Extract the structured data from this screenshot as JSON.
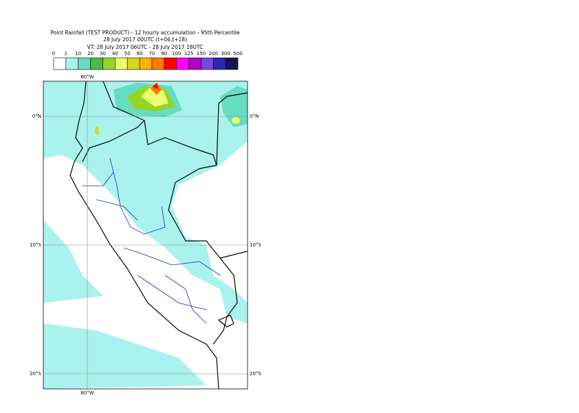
{
  "title": {
    "line1": "Point Rainfall (TEST PRODUCT) - 12 hourly accumulation - 95th Percentile",
    "line2": "28 July 2017 00UTC (t+06,t+18)",
    "line3": "VT: 28 July 2017 06UTC - 28 July 2017 18UTC"
  },
  "legend": {
    "labels": [
      "0",
      "1",
      "10",
      "20",
      "30",
      "40",
      "50",
      "60",
      "70",
      "80",
      "100",
      "125",
      "150",
      "200",
      "300",
      "500"
    ],
    "colors": [
      "#ffffff",
      "#aaf2ee",
      "#66dcc0",
      "#4cb848",
      "#96d424",
      "#eaff70",
      "#d8d81c",
      "#ffb400",
      "#ff7a00",
      "#ff0000",
      "#ff00ff",
      "#b400c8",
      "#7846e6",
      "#2828b4",
      "#141450"
    ]
  },
  "map": {
    "lon_label": "80°W",
    "lat_labels": [
      "0°N",
      "10°S",
      "20°S"
    ]
  }
}
